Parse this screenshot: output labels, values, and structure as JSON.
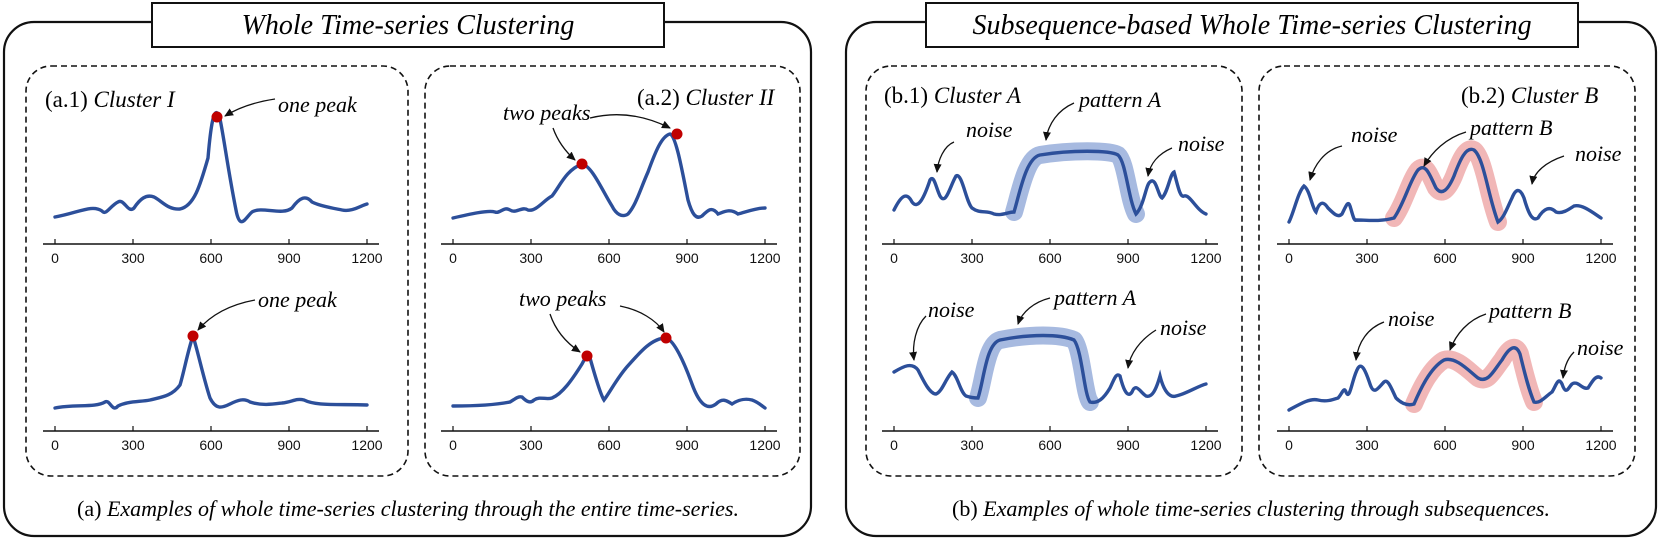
{
  "left_panel": {
    "title": "Whole Time-series Clustering",
    "caption_prefix": "(a)",
    "caption_text": " Examples of whole time-series clustering through the entire time-series.",
    "subpanels": [
      {
        "label_paren": "(a.1)",
        "label_text": " Cluster I",
        "plots": [
          {
            "annotations": [
              "one peak"
            ]
          },
          {
            "annotations": [
              "one peak"
            ]
          }
        ]
      },
      {
        "label_paren": "(a.2)",
        "label_text": " Cluster II",
        "plots": [
          {
            "annotations": [
              "two peaks"
            ]
          },
          {
            "annotations": [
              "two peaks"
            ]
          }
        ]
      }
    ]
  },
  "right_panel": {
    "title": "Subsequence-based Whole Time-series Clustering",
    "caption_prefix": "(b)",
    "caption_text": " Examples of whole time-series clustering through subsequences.",
    "subpanels": [
      {
        "label_paren": "(b.1)",
        "label_text": " Cluster A",
        "plots": [
          {
            "annotations": [
              "noise",
              "pattern A",
              "noise"
            ]
          },
          {
            "annotations": [
              "noise",
              "pattern A",
              "noise"
            ]
          }
        ]
      },
      {
        "label_paren": "(b.2)",
        "label_text": " Cluster B",
        "plots": [
          {
            "annotations": [
              "noise",
              "pattern B",
              "noise"
            ]
          },
          {
            "annotations": [
              "noise",
              "pattern B",
              "noise"
            ]
          }
        ]
      }
    ]
  },
  "axis_ticks": [
    "0",
    "300",
    "600",
    "900",
    "1200"
  ],
  "colors": {
    "series": "#2c4f9a",
    "peak_marker": "#c00000",
    "pattern_a_highlight": "#9db3dd",
    "pattern_b_highlight": "#eeaaaa",
    "frame": "#111111"
  }
}
